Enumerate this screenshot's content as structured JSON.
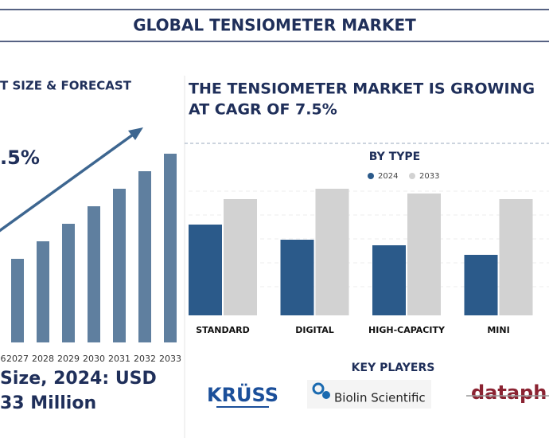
{
  "header": {
    "title": "GLOBAL TENSIOMETER MARKET"
  },
  "headline": [
    "THE TENSIOMETER MARKET IS GROWING",
    "AT CAGR OF 7.5%"
  ],
  "chart_data": [
    {
      "type": "bar",
      "title": "T SIZE & FORECAST",
      "annotation": ".5%",
      "categories": [
        "6",
        "2027",
        "2028",
        "2029",
        "2030",
        "2031",
        "2032",
        "2033"
      ],
      "values": [
        83,
        105,
        127,
        149,
        171,
        193,
        215,
        237
      ],
      "color": "#5f7f9f",
      "ylim": [
        0,
        240
      ]
    },
    {
      "type": "grouped_bar",
      "title": "BY TYPE",
      "categories": [
        "STANDARD",
        "DIGITAL",
        "HIGH-CAPACITY",
        "MINI"
      ],
      "series": [
        {
          "name": "2024",
          "color": "#2b5a8a",
          "values": [
            114,
            95,
            88,
            76
          ]
        },
        {
          "name": "2033",
          "color": "#d2d2d2",
          "values": [
            146,
            159,
            153,
            146
          ]
        }
      ],
      "ylim": [
        0,
        160
      ]
    }
  ],
  "market_size": [
    "Size, 2024: USD",
    "33 Million"
  ],
  "key_players": {
    "title": "KEY PLAYERS",
    "logos": [
      "KRÜSS",
      "Biolin Scientific",
      "dataph"
    ]
  }
}
